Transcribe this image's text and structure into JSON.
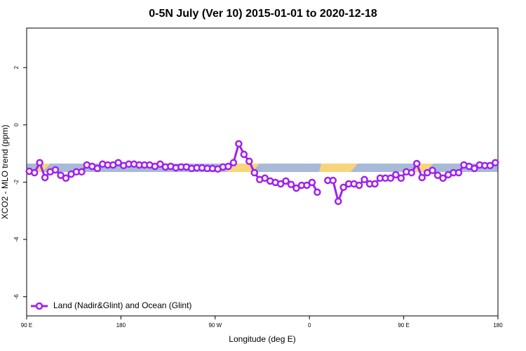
{
  "chart_data": {
    "type": "line",
    "title": "0-5N July (Ver 10)   2015-01-01 to 2020-12-18",
    "x_label": "Longitude (deg E)",
    "y_label": "XCO2 - MLO trend (ppm)",
    "x": [
      92.5,
      97.5,
      102.5,
      107.5,
      112.5,
      117.5,
      122.5,
      127.5,
      132.5,
      137.5,
      142.5,
      147.5,
      152.5,
      157.5,
      162.5,
      167.5,
      172.5,
      177.5,
      182.5,
      187.5,
      192.5,
      197.5,
      202.5,
      207.5,
      212.5,
      217.5,
      222.5,
      227.5,
      232.5,
      237.5,
      242.5,
      247.5,
      252.5,
      257.5,
      262.5,
      267.5,
      272.5,
      277.5,
      282.5,
      287.5,
      292.5,
      297.5,
      302.5,
      307.5,
      312.5,
      317.5,
      322.5,
      327.5,
      332.5,
      337.5,
      342.5,
      347.5,
      352.5,
      357.5,
      362.5,
      367.5,
      372.5,
      377.5,
      382.5,
      387.5,
      392.5,
      397.5,
      402.5,
      407.5,
      412.5,
      417.5,
      422.5,
      427.5,
      432.5,
      437.5,
      442.5,
      447.5,
      452.5,
      457.5,
      462.5,
      467.5,
      472.5,
      477.5,
      482.5,
      487.5,
      492.5,
      497.5,
      502.5,
      507.5,
      512.5,
      517.5,
      522.5,
      527.5,
      532.5,
      537.5
    ],
    "series": [
      {
        "name": "Land (Nadir&Glint) and Ocean (Glint)",
        "color": "#a020f0",
        "values": [
          -1.62,
          -1.67,
          -1.32,
          -1.84,
          -1.64,
          -1.57,
          -1.76,
          -1.86,
          -1.72,
          -1.64,
          -1.64,
          -1.4,
          -1.45,
          -1.52,
          -1.37,
          -1.4,
          -1.4,
          -1.32,
          -1.42,
          -1.37,
          -1.37,
          -1.4,
          -1.4,
          -1.4,
          -1.45,
          -1.37,
          -1.47,
          -1.45,
          -1.5,
          -1.47,
          -1.47,
          -1.52,
          -1.5,
          -1.5,
          -1.52,
          -1.52,
          -1.54,
          -1.47,
          -1.45,
          -1.32,
          -0.66,
          -1.03,
          -1.27,
          -1.67,
          -1.91,
          -1.86,
          -1.96,
          -2.01,
          -2.06,
          -1.96,
          -2.08,
          -2.21,
          -2.11,
          -2.11,
          -2.01,
          -2.35,
          null,
          -1.94,
          -1.94,
          -2.67,
          -2.18,
          -2.06,
          -2.06,
          -2.11,
          -1.91,
          -2.06,
          -2.06,
          -1.86,
          -1.86,
          -1.86,
          -1.74,
          -1.86,
          -1.64,
          -1.67,
          -1.35,
          -1.84,
          -1.67,
          -1.59,
          -1.76,
          -1.86,
          -1.74,
          -1.67,
          -1.67,
          -1.4,
          -1.45,
          -1.52,
          -1.4,
          -1.42,
          -1.42,
          -1.32
        ]
      }
    ],
    "xlim": [
      90,
      540
    ],
    "xticks": [
      {
        "value": 90,
        "label": "90 E"
      },
      180,
      {
        "value": 270,
        "label": "90 W"
      },
      {
        "value": 360,
        "label": "0"
      },
      {
        "value": 450,
        "label": "90 E"
      },
      {
        "value": 540,
        "label": "180"
      }
    ],
    "ylim": [
      -6.67,
      3.38
    ],
    "yticks": [
      -6,
      -4,
      -2,
      0,
      2
    ],
    "legend": "bottom-left"
  }
}
